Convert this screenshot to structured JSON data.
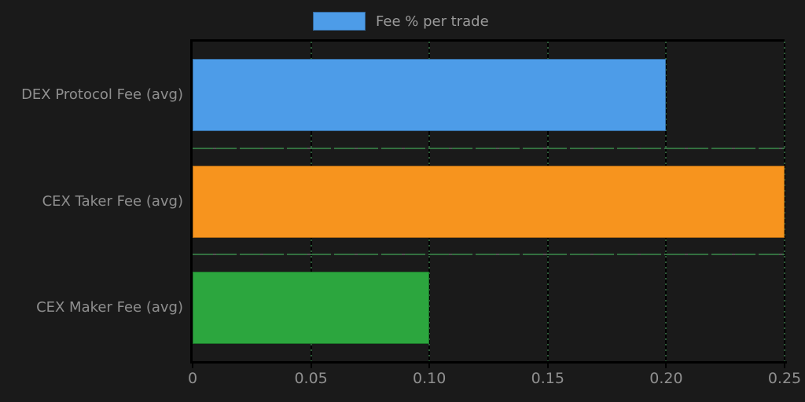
{
  "colors": {
    "background": "#1a1a1a",
    "text": "#8f8f8f",
    "spine": "#000000",
    "separator_green": "#337040"
  },
  "chart_data": {
    "type": "bar",
    "orientation": "horizontal",
    "title": "",
    "xlabel": "",
    "ylabel": "",
    "categories": [
      "DEX Protocol Fee (avg)",
      "CEX Taker Fee (avg)",
      "CEX Maker Fee (avg)"
    ],
    "values": [
      0.2,
      0.25,
      0.1
    ],
    "bar_colors": [
      "#4d9ce8",
      "#f7941e",
      "#2ca63e"
    ],
    "xlim": [
      0,
      0.25
    ],
    "xticks": [
      0,
      0.05,
      0.1,
      0.15,
      0.2,
      0.25
    ],
    "xtick_labels": [
      "0",
      "0.05",
      "0.10",
      "0.15",
      "0.20",
      "0.25"
    ],
    "grid": true,
    "legend": {
      "label": "Fee % per trade",
      "swatch_color": "#4d9ce8",
      "position": "top-center"
    }
  }
}
